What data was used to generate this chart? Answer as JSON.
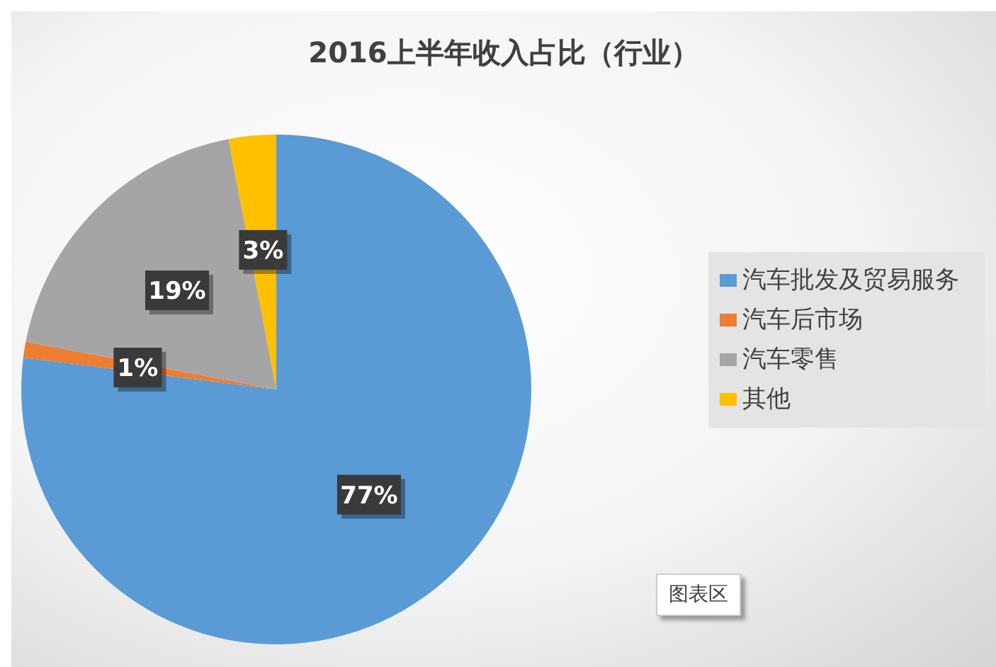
{
  "chart_data": {
    "type": "pie",
    "title": "2016上半年收入占比（行业）",
    "categories": [
      "汽车批发及贸易服务",
      "汽车后市场",
      "汽车零售",
      "其他"
    ],
    "values": [
      77,
      1,
      19,
      3
    ],
    "value_labels": [
      "77%",
      "1%",
      "19%",
      "3%"
    ],
    "colors": [
      "#5b9bd5",
      "#ed7d31",
      "#a5a5a5",
      "#ffc000"
    ],
    "legend": "right",
    "annotations": [
      "图表区"
    ]
  }
}
